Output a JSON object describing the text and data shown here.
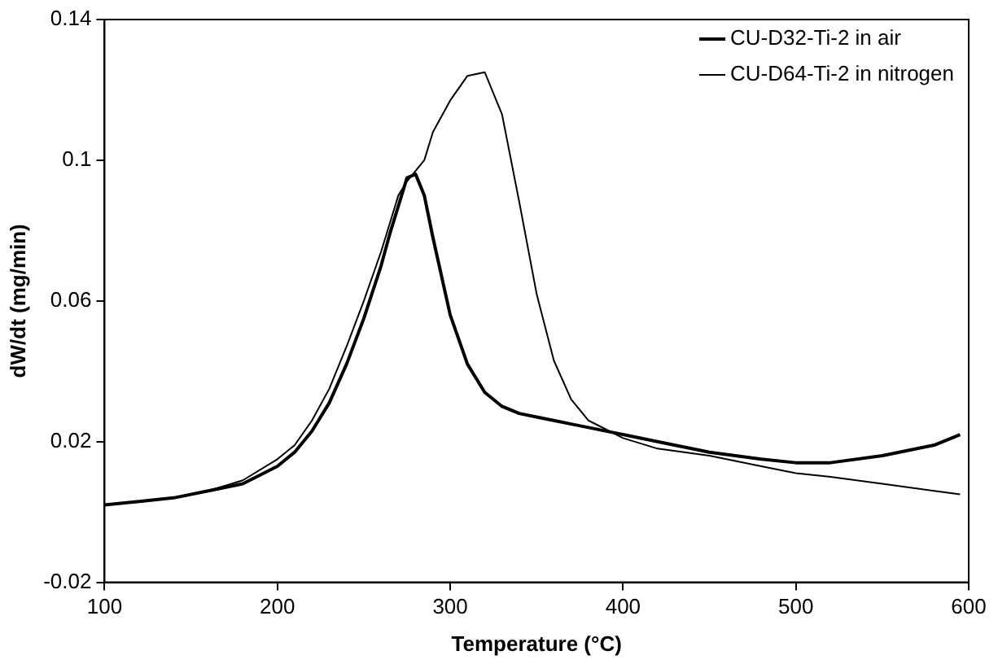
{
  "chart_data": {
    "type": "line",
    "xlabel": "Temperature (°C)",
    "ylabel": "dW/dt (mg/min)",
    "x": [
      100,
      120,
      140,
      160,
      180,
      200,
      210,
      220,
      230,
      240,
      250,
      260,
      265,
      270,
      275,
      280,
      285,
      290,
      300,
      310,
      320,
      330,
      340,
      350,
      360,
      370,
      380,
      400,
      420,
      450,
      480,
      500,
      520,
      550,
      580,
      595
    ],
    "series": [
      {
        "name": "CU-D32-Ti-2 in air",
        "color": "#000000",
        "values": [
          0.002,
          0.003,
          0.004,
          0.006,
          0.008,
          0.013,
          0.017,
          0.023,
          0.031,
          0.042,
          0.055,
          0.07,
          0.079,
          0.087,
          0.095,
          0.096,
          0.09,
          0.078,
          0.056,
          0.042,
          0.034,
          0.03,
          0.028,
          0.027,
          0.026,
          0.025,
          0.024,
          0.022,
          0.02,
          0.017,
          0.015,
          0.014,
          0.014,
          0.016,
          0.019,
          0.022
        ]
      },
      {
        "name": "CU-D64-Ti-2 in nitrogen",
        "color": "#000000",
        "values": [
          0.002,
          0.003,
          0.004,
          0.006,
          0.009,
          0.015,
          0.019,
          0.026,
          0.035,
          0.047,
          0.06,
          0.074,
          0.082,
          0.09,
          0.094,
          0.097,
          0.1,
          0.108,
          0.117,
          0.124,
          0.125,
          0.113,
          0.088,
          0.062,
          0.043,
          0.032,
          0.026,
          0.021,
          0.018,
          0.016,
          0.013,
          0.011,
          0.01,
          0.008,
          0.006,
          0.005
        ]
      }
    ],
    "xlim": [
      100,
      600
    ],
    "xticks": [
      100,
      200,
      300,
      400,
      500,
      600
    ],
    "ylim": [
      -0.02,
      0.14
    ],
    "yticks": [
      -0.02,
      0.02,
      0.06,
      0.1,
      0.14
    ],
    "grid": false,
    "legend": "top right",
    "marker": "none",
    "line_style": "solid"
  }
}
